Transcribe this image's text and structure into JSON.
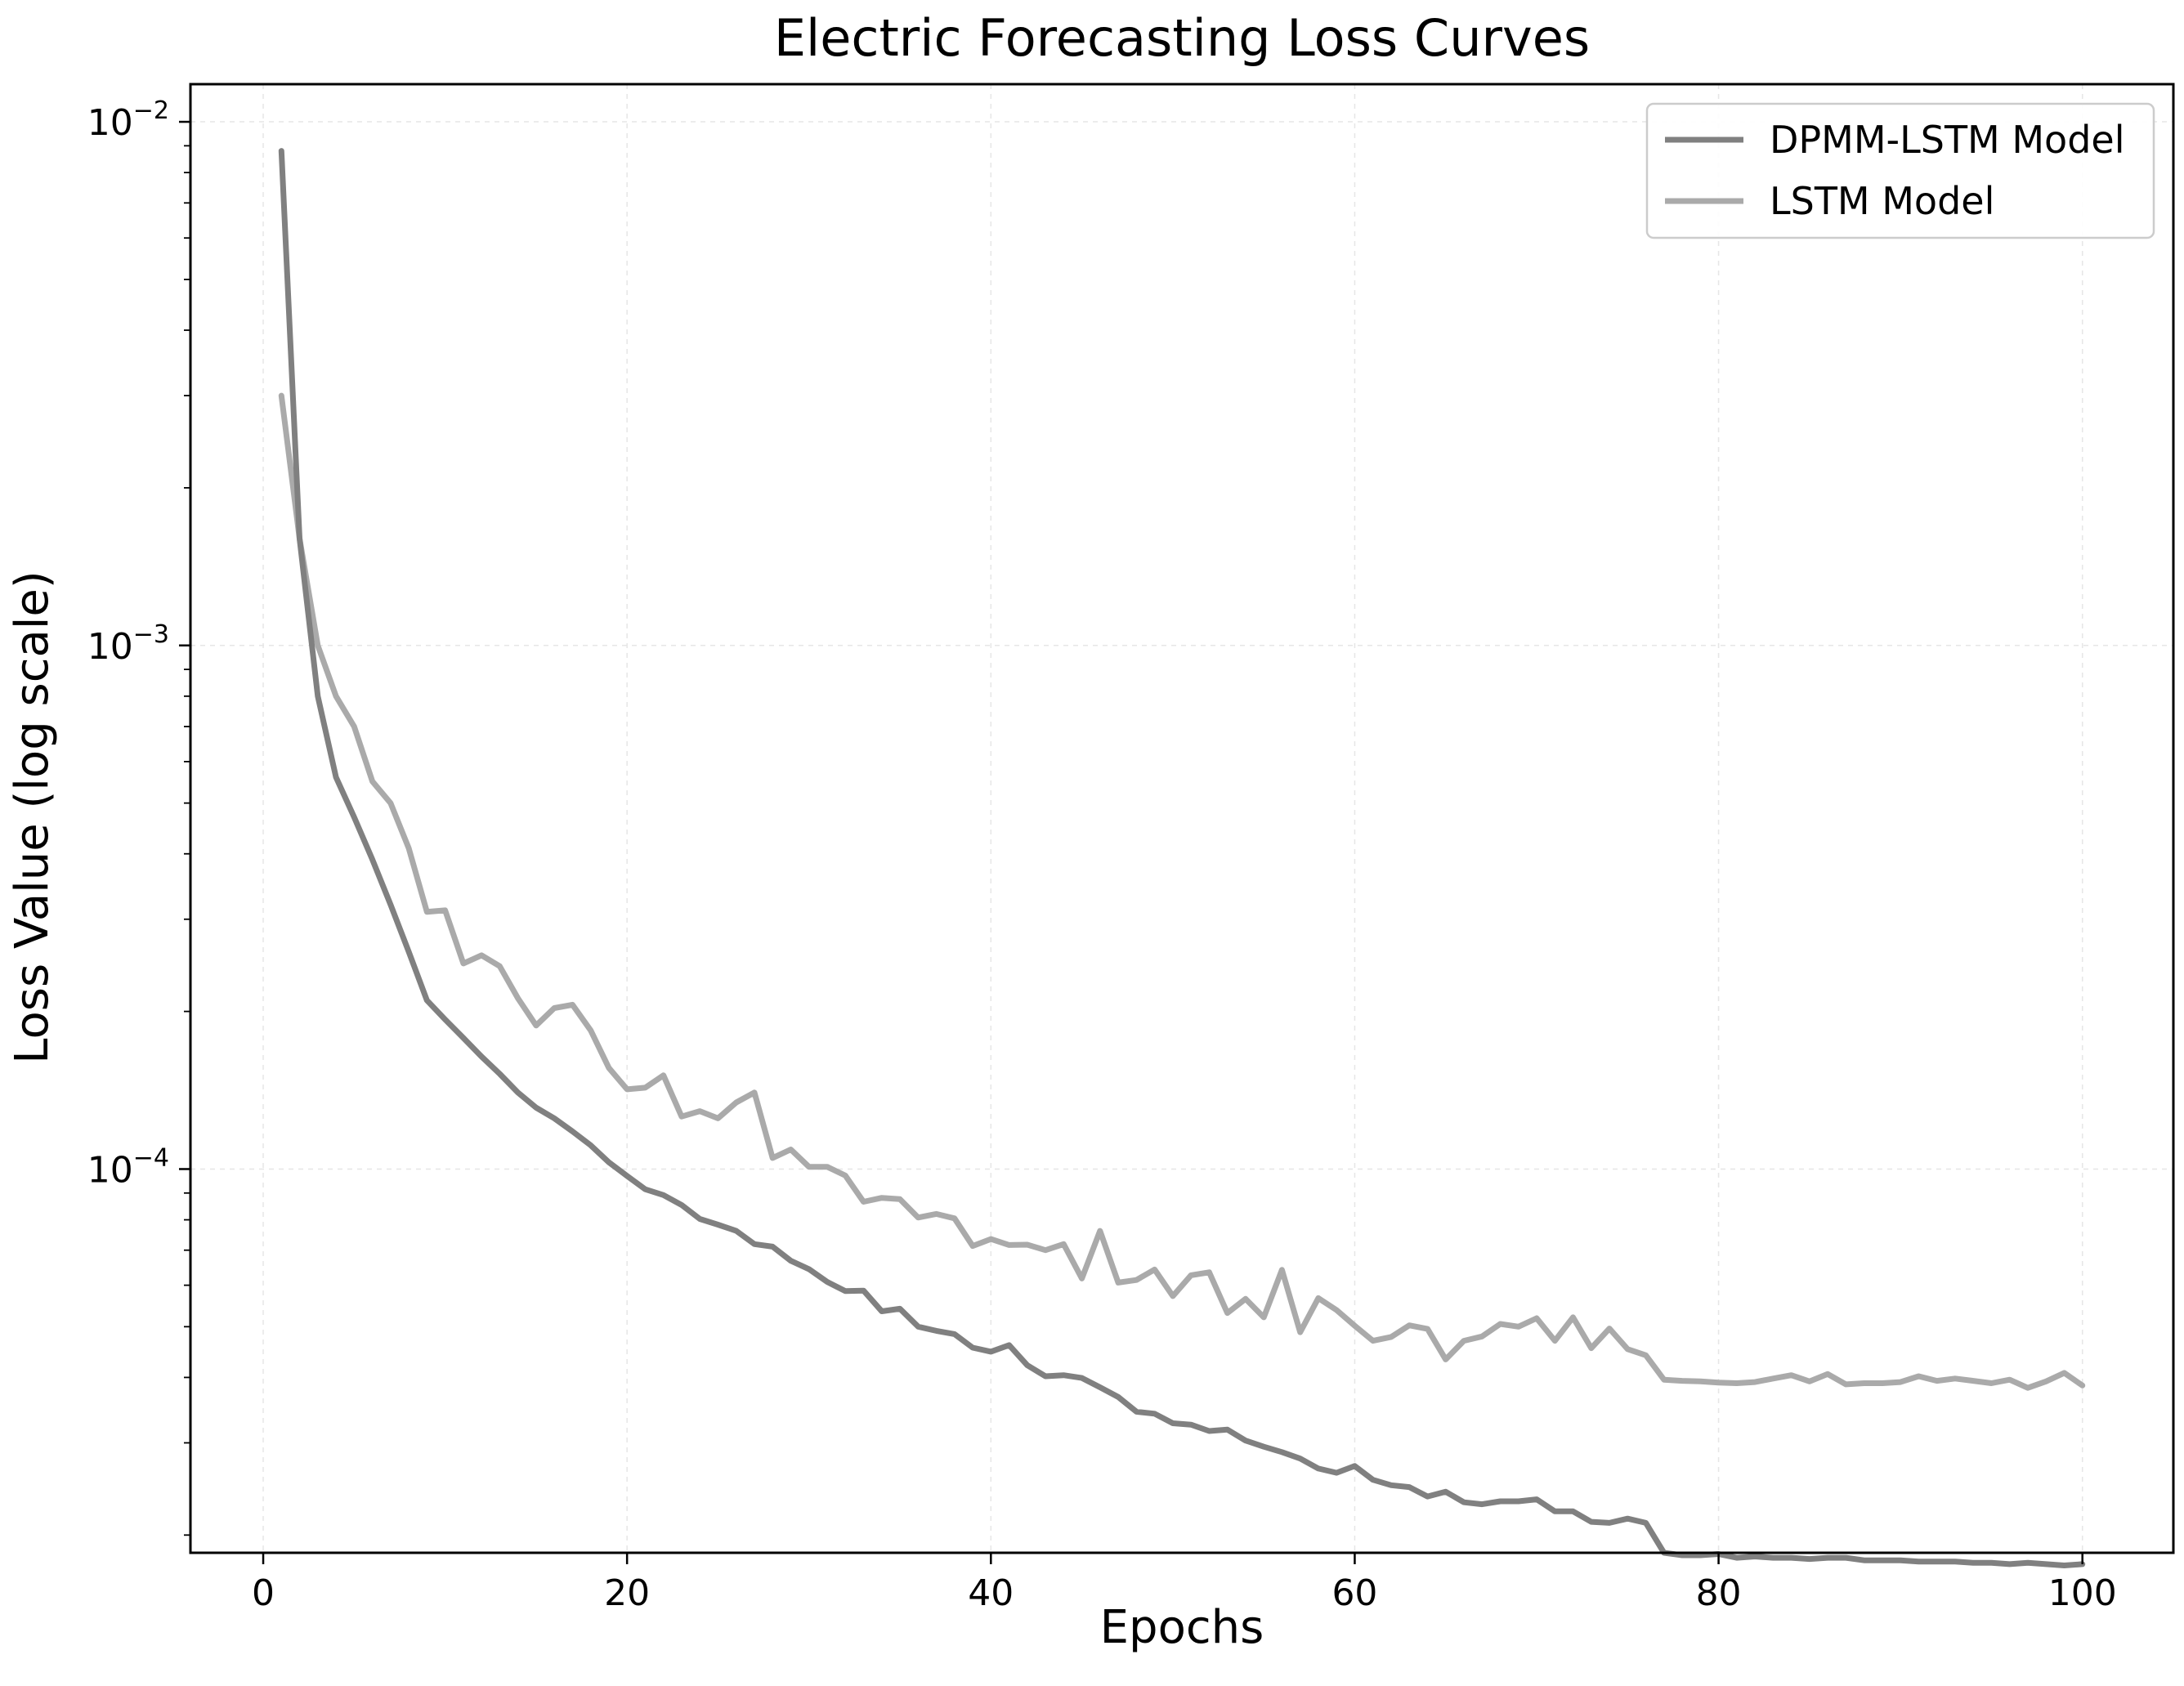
{
  "chart_data": {
    "type": "line",
    "title": "Electric Forecasting Loss Curves",
    "xlabel": "Epochs",
    "ylabel": "Loss Value (log scale)",
    "xlim": [
      -4,
      105
    ],
    "ylim": [
      1.85e-05,
      0.0118
    ],
    "yscale": "log",
    "grid": true,
    "legend_position": "top-right",
    "xticks": [
      0,
      20,
      40,
      60,
      80,
      100
    ],
    "yticks": [
      {
        "value": 0.01,
        "base": "10",
        "exp": "−2"
      },
      {
        "value": 0.001,
        "base": "10",
        "exp": "−3"
      },
      {
        "value": 0.0001,
        "base": "10",
        "exp": "−4"
      }
    ],
    "x": [
      1,
      2,
      3,
      4,
      5,
      6,
      7,
      8,
      9,
      10,
      11,
      12,
      13,
      14,
      15,
      16,
      17,
      18,
      19,
      20,
      21,
      22,
      23,
      24,
      25,
      26,
      27,
      28,
      29,
      30,
      31,
      32,
      33,
      34,
      35,
      36,
      37,
      38,
      39,
      40,
      41,
      42,
      43,
      44,
      45,
      46,
      47,
      48,
      49,
      50,
      51,
      52,
      53,
      54,
      55,
      56,
      57,
      58,
      59,
      60,
      61,
      62,
      63,
      64,
      65,
      66,
      67,
      68,
      69,
      70,
      71,
      72,
      73,
      74,
      75,
      76,
      77,
      78,
      79,
      80,
      81,
      82,
      83,
      84,
      85,
      86,
      87,
      88,
      89,
      90,
      91,
      92,
      93,
      94,
      95,
      96,
      97,
      98,
      99,
      100
    ],
    "series": [
      {
        "name": "DPMM-LSTM Model",
        "color": "#808080",
        "values": [
          0.0088,
          0.0016,
          0.0008,
          0.00056,
          0.00047,
          0.00039,
          0.00032,
          0.00026,
          0.00021,
          0.000193,
          0.000178,
          0.000164,
          0.000152,
          0.00014,
          0.000131,
          0.000125,
          0.000118,
          0.000111,
          0.000103,
          9.7e-05,
          9.15e-05,
          8.92e-05,
          8.54e-05,
          8.03e-05,
          7.83e-05,
          7.62e-05,
          7.19e-05,
          7.11e-05,
          6.68e-05,
          6.44e-05,
          6.09e-05,
          5.85e-05,
          5.86e-05,
          5.35e-05,
          5.41e-05,
          5e-05,
          4.91e-05,
          4.84e-05,
          4.56e-05,
          4.48e-05,
          4.61e-05,
          4.22e-05,
          4.02e-05,
          4.04e-05,
          3.99e-05,
          3.83e-05,
          3.67e-05,
          3.44e-05,
          3.41e-05,
          3.27e-05,
          3.25e-05,
          3.16e-05,
          3.18e-05,
          3.03e-05,
          2.95e-05,
          2.88e-05,
          2.8e-05,
          2.68e-05,
          2.63e-05,
          2.71e-05,
          2.55e-05,
          2.49e-05,
          2.47e-05,
          2.37e-05,
          2.42e-05,
          2.31e-05,
          2.29e-05,
          2.32e-05,
          2.32e-05,
          2.34e-05,
          2.22e-05,
          2.22e-05,
          2.12e-05,
          2.11e-05,
          2.15e-05,
          2.11e-05,
          1.85e-05,
          1.83e-05,
          1.83e-05,
          1.84e-05,
          1.81e-05,
          1.82e-05,
          1.81e-05,
          1.81e-05,
          1.8e-05,
          1.81e-05,
          1.81e-05,
          1.79e-05,
          1.79e-05,
          1.79e-05,
          1.78e-05,
          1.78e-05,
          1.78e-05,
          1.77e-05,
          1.77e-05,
          1.76e-05,
          1.77e-05,
          1.76e-05,
          1.75e-05,
          1.76e-05
        ]
      },
      {
        "name": "LSTM Model",
        "color": "#aaaaaa",
        "values": [
          0.003,
          0.0016,
          0.001,
          0.0008,
          0.0007,
          0.00055,
          0.0005,
          0.00041,
          0.00031,
          0.000312,
          0.000247,
          0.000256,
          0.000244,
          0.000212,
          0.000188,
          0.000203,
          0.000206,
          0.000184,
          0.000156,
          0.000142,
          0.000143,
          0.000151,
          0.000126,
          0.000129,
          0.000125,
          0.000134,
          0.00014,
          0.000105,
          0.000109,
          0.000101,
          0.000101,
          9.72e-05,
          8.66e-05,
          8.81e-05,
          8.76e-05,
          8.08e-05,
          8.21e-05,
          8.05e-05,
          7.13e-05,
          7.35e-05,
          7.16e-05,
          7.17e-05,
          7e-05,
          7.19e-05,
          6.18e-05,
          7.62e-05,
          6.07e-05,
          6.14e-05,
          6.43e-05,
          5.72e-05,
          6.27e-05,
          6.35e-05,
          5.31e-05,
          5.65e-05,
          5.21e-05,
          6.42e-05,
          4.88e-05,
          5.67e-05,
          5.38e-05,
          5.02e-05,
          4.7e-05,
          4.78e-05,
          5.03e-05,
          4.95e-05,
          4.33e-05,
          4.7e-05,
          4.79e-05,
          5.06e-05,
          5e-05,
          5.19e-05,
          4.7e-05,
          5.21e-05,
          4.55e-05,
          4.96e-05,
          4.53e-05,
          4.41e-05,
          3.96e-05,
          3.94e-05,
          3.93e-05,
          3.91e-05,
          3.9e-05,
          3.92e-05,
          3.98e-05,
          4.04e-05,
          3.93e-05,
          4.06e-05,
          3.88e-05,
          3.9e-05,
          3.9e-05,
          3.92e-05,
          4.02e-05,
          3.94e-05,
          3.98e-05,
          3.94e-05,
          3.9e-05,
          3.96e-05,
          3.82e-05,
          3.93e-05,
          4.08e-05,
          3.86e-05
        ]
      }
    ]
  }
}
